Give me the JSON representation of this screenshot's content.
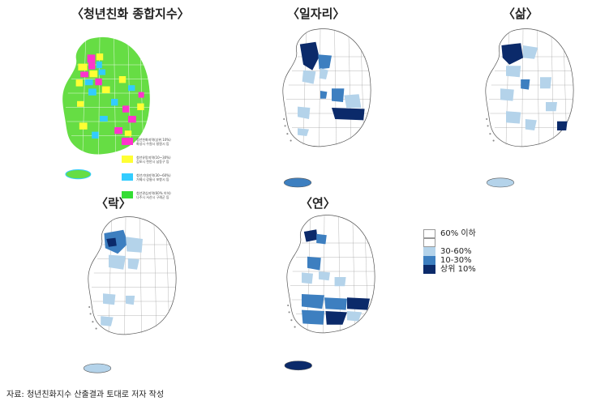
{
  "titles": {
    "composite": "〈청년친화 종합지수〉",
    "jobs": "〈일자리〉",
    "life": "〈삶〉",
    "leisure": "〈락〉",
    "relation": "〈연〉"
  },
  "composite_legend": {
    "items": [
      {
        "color": "#ff33cc",
        "lines": [
          "청년친화지역(상위 10%)",
          "화성시 수원시 창원시 등"
        ]
      },
      {
        "color": "#ffff33",
        "lines": [
          "청년유망지역(10~30%)",
          "김포시 천안시 남동구 등"
        ]
      },
      {
        "color": "#33ccff",
        "lines": [
          "청년기대지역(30~60%)",
          "거제시 강릉시 포항시 등"
        ]
      },
      {
        "color": "#33dd33",
        "lines": [
          "청년관심지역(60% 이하)",
          "나주시 서산시 구례군 등"
        ]
      }
    ]
  },
  "legend": {
    "items": [
      {
        "label": "60% 이하",
        "color": "#ffffff"
      },
      {
        "label": "30-60%",
        "color": "#b4d3ea"
      },
      {
        "label": "10-30%",
        "color": "#3d7fc0"
      },
      {
        "label": "상위 10%",
        "color": "#0b2a6a"
      }
    ]
  },
  "source": "자료: 청년친화지수 산출결과 토대로 저자 작성"
}
